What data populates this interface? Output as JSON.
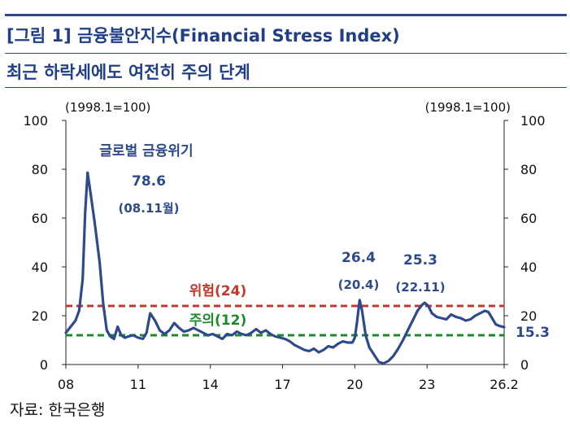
{
  "header": {
    "title": "[그림 1] 금융불안지수(Financial Stress Index)",
    "subtitle": "최근 하락세에도 여전히 주의 단계"
  },
  "source": "자료: 한국은행",
  "colors": {
    "line": "#2e4a8c",
    "danger": "#c0392b",
    "caution": "#1e8a2e",
    "title": "#1f3f86"
  },
  "chart_data": {
    "type": "line",
    "left_unit": "(1998.1=100)",
    "right_unit": "(1998.1=100)",
    "ylim": [
      0,
      100
    ],
    "y_ticks": [
      "0",
      "20",
      "40",
      "60",
      "80",
      "100"
    ],
    "xlim": [
      2008.0,
      2026.2
    ],
    "x_ticks": [
      {
        "x": 2008.0,
        "label": "08"
      },
      {
        "x": 2011.0,
        "label": "11"
      },
      {
        "x": 2014.0,
        "label": "14"
      },
      {
        "x": 2017.0,
        "label": "17"
      },
      {
        "x": 2020.0,
        "label": "20"
      },
      {
        "x": 2023.0,
        "label": "23"
      },
      {
        "x": 2026.2,
        "label": "26.2"
      }
    ],
    "thresholds": [
      {
        "label": "위험(24)",
        "value": 24,
        "color": "#c0392b"
      },
      {
        "label": "주의(12)",
        "value": 12,
        "color": "#1e8a2e"
      }
    ],
    "annotations": [
      {
        "x": 2008.9,
        "y": 78.6,
        "title": "글로벌 금융위기",
        "value": "78.6",
        "date": "(08.11월)"
      },
      {
        "x": 2020.2,
        "y": 26.4,
        "value": "26.4",
        "date": "(20.4)"
      },
      {
        "x": 2022.9,
        "y": 25.3,
        "value": "25.3",
        "date": "(22.11)"
      }
    ],
    "last_value": "15.3",
    "series": [
      {
        "x": [
          2008.0,
          2008.2,
          2008.4,
          2008.55,
          2008.7,
          2008.8,
          2008.9,
          2009.0,
          2009.2,
          2009.4,
          2009.55,
          2009.7,
          2009.85,
          2010.0,
          2010.15,
          2010.3,
          2010.45,
          2010.6,
          2010.8,
          2011.0,
          2011.2,
          2011.35,
          2011.5,
          2011.7,
          2011.9,
          2012.1,
          2012.3,
          2012.5,
          2012.7,
          2012.9,
          2013.1,
          2013.3,
          2013.5,
          2013.7,
          2013.9,
          2014.1,
          2014.3,
          2014.5,
          2014.7,
          2014.9,
          2015.1,
          2015.3,
          2015.5,
          2015.7,
          2015.9,
          2016.1,
          2016.3,
          2016.5,
          2016.7,
          2016.9,
          2017.1,
          2017.3,
          2017.5,
          2017.7,
          2017.9,
          2018.1,
          2018.3,
          2018.5,
          2018.7,
          2018.9,
          2019.1,
          2019.3,
          2019.5,
          2019.7,
          2019.9,
          2020.0,
          2020.1,
          2020.2,
          2020.3,
          2020.45,
          2020.6,
          2020.8,
          2021.0,
          2021.2,
          2021.4,
          2021.6,
          2021.8,
          2022.0,
          2022.2,
          2022.4,
          2022.6,
          2022.8,
          2022.9,
          2023.05,
          2023.2,
          2023.4,
          2023.6,
          2023.8,
          2024.0,
          2024.2,
          2024.4,
          2024.6,
          2024.8,
          2025.0,
          2025.2,
          2025.4,
          2025.55,
          2025.7,
          2025.85,
          2026.0,
          2026.2
        ],
        "y": [
          13.0,
          15.5,
          18.0,
          22.0,
          35.0,
          62.0,
          78.6,
          72.0,
          58.0,
          42.0,
          25.0,
          14.0,
          11.5,
          10.5,
          15.5,
          12.0,
          11.0,
          11.5,
          12.0,
          11.0,
          10.5,
          13.0,
          21.0,
          18.0,
          14.0,
          12.5,
          14.0,
          17.0,
          15.0,
          13.5,
          14.0,
          15.0,
          14.0,
          13.0,
          12.0,
          12.5,
          11.5,
          10.5,
          12.5,
          12.0,
          13.5,
          12.5,
          12.0,
          13.0,
          14.5,
          13.0,
          14.0,
          12.5,
          11.5,
          11.0,
          10.5,
          9.5,
          8.0,
          7.0,
          6.0,
          5.5,
          6.5,
          5.0,
          6.0,
          7.5,
          7.0,
          8.5,
          9.5,
          9.0,
          9.0,
          11.0,
          18.0,
          26.4,
          22.0,
          12.0,
          7.0,
          4.0,
          1.0,
          0.5,
          1.5,
          3.5,
          6.5,
          10.0,
          14.0,
          18.0,
          22.0,
          24.5,
          25.3,
          24.0,
          21.0,
          19.5,
          19.0,
          18.5,
          20.5,
          19.5,
          19.0,
          18.0,
          18.5,
          20.0,
          21.0,
          22.0,
          21.5,
          19.0,
          16.5,
          15.8,
          15.3
        ]
      }
    ]
  }
}
